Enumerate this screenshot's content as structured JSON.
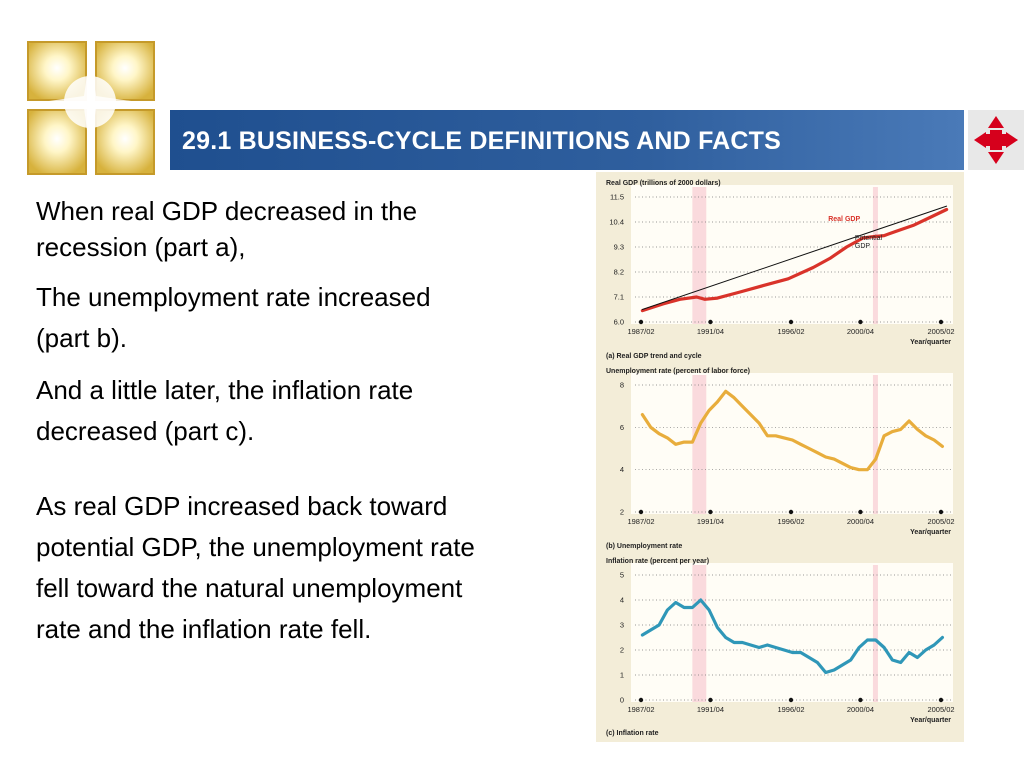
{
  "slide": {
    "title": "29.1 BUSINESS-CYCLE DEFINITIONS AND FACTS",
    "colors": {
      "title_bar": "#2f5f9e",
      "title_text": "#ffffff",
      "nav_arrow": "#d6001c"
    },
    "icons": {
      "logo": "sunburst-logo-icon",
      "nav": "four-way-arrow-icon"
    }
  },
  "bullets": [
    "When real GDP decreased in the recession (part a),",
    "The unemployment rate increased (part b).",
    "And a little later, the inflation rate decreased (part c).",
    "As real GDP increased back toward potential GDP, the unemployment rate fell toward the natural unemployment rate and the inflation rate fell."
  ],
  "chart_data": [
    {
      "type": "line",
      "title": "Real GDP (trillions of 2000 dollars)",
      "caption": "(a) Real GDP trend and cycle",
      "xlabel": "Year/quarter",
      "x_ticks": [
        "1987/02",
        "1991/04",
        "1996/02",
        "2000/04",
        "2005/02"
      ],
      "y_ticks": [
        "6.0",
        "7.1",
        "8.2",
        "9.3",
        "10.4",
        "11.5"
      ],
      "ylim": [
        6.0,
        11.5
      ],
      "recession_bands": [
        [
          "1990/03",
          "1991/01"
        ],
        [
          "2001/01",
          "2001/04"
        ]
      ],
      "series": [
        {
          "name": "Real GDP",
          "color": "#d9332a",
          "x": [
            1987.25,
            1988.5,
            1989.5,
            1990.5,
            1991.0,
            1991.75,
            1993.0,
            1994.5,
            1996.0,
            1997.5,
            1998.5,
            1999.5,
            2000.5,
            2001.0,
            2001.75,
            2002.5,
            2003.5,
            2004.5,
            2005.5
          ],
          "values": [
            6.5,
            6.8,
            7.0,
            7.1,
            7.0,
            7.05,
            7.3,
            7.6,
            7.9,
            8.4,
            8.8,
            9.3,
            9.7,
            9.75,
            9.8,
            10.0,
            10.25,
            10.6,
            10.95
          ]
        },
        {
          "name": "Potential GDP",
          "color": "#111111",
          "x": [
            1987.25,
            2005.5
          ],
          "values": [
            6.55,
            11.1
          ]
        }
      ]
    },
    {
      "type": "line",
      "title": "Unemployment rate (percent of labor force)",
      "caption": "(b) Unemployment rate",
      "xlabel": "Year/quarter",
      "x_ticks": [
        "1987/02",
        "1991/04",
        "1996/02",
        "2000/04",
        "2005/02"
      ],
      "y_ticks": [
        "2",
        "4",
        "6",
        "8"
      ],
      "ylim": [
        2,
        8
      ],
      "recession_bands": [
        [
          "1990/03",
          "1991/01"
        ],
        [
          "2001/01",
          "2001/04"
        ]
      ],
      "series": [
        {
          "color": "#e8ad3c",
          "x": [
            1987.25,
            1987.75,
            1988.25,
            1988.75,
            1989.25,
            1989.75,
            1990.25,
            1990.75,
            1991.25,
            1991.75,
            1992.25,
            1992.75,
            1993.25,
            1993.75,
            1994.25,
            1994.75,
            1995.25,
            1995.75,
            1996.25,
            1996.75,
            1997.25,
            1997.75,
            1998.25,
            1998.75,
            1999.25,
            1999.75,
            2000.25,
            2000.75,
            2001.25,
            2001.75,
            2002.25,
            2002.75,
            2003.25,
            2003.75,
            2004.25,
            2004.75,
            2005.25
          ],
          "values": [
            6.6,
            6.0,
            5.7,
            5.5,
            5.2,
            5.3,
            5.3,
            6.2,
            6.8,
            7.2,
            7.7,
            7.4,
            7.0,
            6.6,
            6.2,
            5.6,
            5.6,
            5.5,
            5.4,
            5.2,
            5.0,
            4.8,
            4.6,
            4.5,
            4.3,
            4.1,
            4.0,
            4.0,
            4.5,
            5.6,
            5.8,
            5.9,
            6.3,
            5.9,
            5.6,
            5.4,
            5.1
          ]
        }
      ]
    },
    {
      "type": "line",
      "title": "Inflation rate (percent per year)",
      "caption": "(c) Inflation rate",
      "xlabel": "Year/quarter",
      "x_ticks": [
        "1987/02",
        "1991/04",
        "1996/02",
        "2000/04",
        "2005/02"
      ],
      "y_ticks": [
        "0",
        "1",
        "2",
        "3",
        "4",
        "5"
      ],
      "ylim": [
        0,
        5
      ],
      "recession_bands": [
        [
          "1990/03",
          "1991/01"
        ],
        [
          "2001/01",
          "2001/04"
        ]
      ],
      "series": [
        {
          "color": "#2f97b8",
          "x": [
            1987.25,
            1987.75,
            1988.25,
            1988.75,
            1989.25,
            1989.75,
            1990.25,
            1990.75,
            1991.25,
            1991.75,
            1992.25,
            1992.75,
            1993.25,
            1993.75,
            1994.25,
            1994.75,
            1995.25,
            1995.75,
            1996.25,
            1996.75,
            1997.25,
            1997.75,
            1998.25,
            1998.75,
            1999.25,
            1999.75,
            2000.25,
            2000.75,
            2001.25,
            2001.75,
            2002.25,
            2002.75,
            2003.25,
            2003.75,
            2004.25,
            2004.75,
            2005.25
          ],
          "values": [
            2.6,
            2.8,
            3.0,
            3.6,
            3.9,
            3.7,
            3.7,
            4.0,
            3.6,
            2.9,
            2.5,
            2.3,
            2.3,
            2.2,
            2.1,
            2.2,
            2.1,
            2.0,
            1.9,
            1.9,
            1.7,
            1.5,
            1.1,
            1.2,
            1.4,
            1.6,
            2.1,
            2.4,
            2.4,
            2.1,
            1.6,
            1.5,
            1.9,
            1.7,
            2.0,
            2.2,
            2.5
          ]
        }
      ]
    }
  ]
}
